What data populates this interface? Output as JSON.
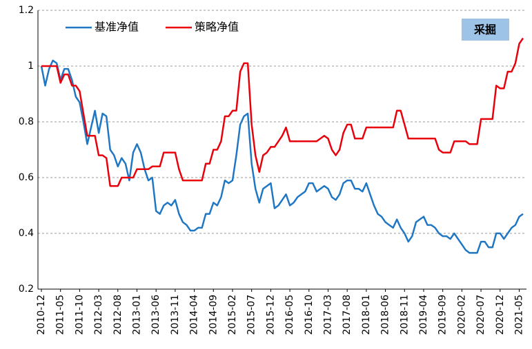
{
  "chart_data": {
    "type": "line",
    "annotation": "采掘",
    "categories": [
      "2010-12",
      null,
      null,
      null,
      null,
      "2011-05",
      null,
      null,
      null,
      null,
      "2011-10",
      null,
      null,
      null,
      null,
      "2012-03",
      null,
      null,
      null,
      null,
      "2012-08",
      null,
      null,
      null,
      null,
      "2013-01",
      null,
      null,
      null,
      null,
      "2013-06",
      null,
      null,
      null,
      null,
      "2013-11",
      null,
      null,
      null,
      null,
      "2014-04",
      null,
      null,
      null,
      null,
      "2014-09",
      null,
      null,
      null,
      null,
      "2015-02",
      null,
      null,
      null,
      null,
      "2015-07",
      null,
      null,
      null,
      null,
      "2015-12",
      null,
      null,
      null,
      null,
      "2016-05",
      null,
      null,
      null,
      null,
      "2016-10",
      null,
      null,
      null,
      null,
      "2017-03",
      null,
      null,
      null,
      null,
      "2017-08",
      null,
      null,
      null,
      null,
      "2018-01",
      null,
      null,
      null,
      null,
      "2018-06",
      null,
      null,
      null,
      null,
      "2018-11",
      null,
      null,
      null,
      null,
      "2019-04",
      null,
      null,
      null,
      null,
      "2019-09",
      null,
      null,
      null,
      null,
      "2020-02",
      null,
      null,
      null,
      null,
      "2020-07",
      null,
      null,
      null,
      null,
      "2020-12",
      null,
      null,
      null,
      null,
      "2021-05",
      null
    ],
    "series": [
      {
        "name": "基准净值",
        "color": "#1f77c4",
        "values": [
          1.0,
          0.93,
          0.99,
          1.02,
          1.01,
          0.95,
          0.99,
          0.99,
          0.95,
          0.89,
          0.87,
          0.8,
          0.72,
          0.78,
          0.84,
          0.76,
          0.83,
          0.82,
          0.7,
          0.68,
          0.64,
          0.67,
          0.65,
          0.59,
          0.69,
          0.72,
          0.69,
          0.63,
          0.59,
          0.6,
          0.48,
          0.47,
          0.5,
          0.51,
          0.5,
          0.52,
          0.47,
          0.44,
          0.43,
          0.41,
          0.41,
          0.42,
          0.42,
          0.47,
          0.47,
          0.51,
          0.5,
          0.53,
          0.59,
          0.58,
          0.59,
          0.68,
          0.79,
          0.82,
          0.83,
          0.65,
          0.56,
          0.51,
          0.56,
          0.57,
          0.58,
          0.49,
          0.5,
          0.52,
          0.54,
          0.5,
          0.51,
          0.53,
          0.54,
          0.55,
          0.58,
          0.58,
          0.55,
          0.56,
          0.57,
          0.56,
          0.53,
          0.52,
          0.54,
          0.58,
          0.59,
          0.59,
          0.56,
          0.56,
          0.55,
          0.58,
          0.54,
          0.5,
          0.47,
          0.46,
          0.44,
          0.43,
          0.42,
          0.45,
          0.42,
          0.4,
          0.37,
          0.39,
          0.44,
          0.45,
          0.46,
          0.43,
          0.43,
          0.42,
          0.4,
          0.39,
          0.39,
          0.38,
          0.4,
          0.38,
          0.36,
          0.34,
          0.33,
          0.33,
          0.33,
          0.37,
          0.37,
          0.35,
          0.35,
          0.4,
          0.4,
          0.38,
          0.4,
          0.42,
          0.43,
          0.46,
          0.47
        ]
      },
      {
        "name": "策略净值",
        "color": "#e8000b",
        "values": [
          1.0,
          1.0,
          1.0,
          1.0,
          1.0,
          0.94,
          0.97,
          0.97,
          0.93,
          0.93,
          0.91,
          0.83,
          0.75,
          0.75,
          0.75,
          0.68,
          0.68,
          0.67,
          0.57,
          0.57,
          0.57,
          0.6,
          0.6,
          0.6,
          0.6,
          0.63,
          0.63,
          0.63,
          0.63,
          0.64,
          0.64,
          0.64,
          0.69,
          0.69,
          0.69,
          0.69,
          0.63,
          0.59,
          0.59,
          0.59,
          0.59,
          0.59,
          0.59,
          0.65,
          0.65,
          0.7,
          0.7,
          0.73,
          0.82,
          0.82,
          0.84,
          0.84,
          0.98,
          1.01,
          1.01,
          0.79,
          0.68,
          0.62,
          0.68,
          0.69,
          0.71,
          0.71,
          0.73,
          0.75,
          0.78,
          0.73,
          0.73,
          0.73,
          0.73,
          0.73,
          0.73,
          0.73,
          0.73,
          0.74,
          0.75,
          0.74,
          0.7,
          0.68,
          0.7,
          0.76,
          0.79,
          0.79,
          0.74,
          0.74,
          0.74,
          0.78,
          0.78,
          0.78,
          0.78,
          0.78,
          0.78,
          0.78,
          0.78,
          0.84,
          0.84,
          0.79,
          0.74,
          0.74,
          0.74,
          0.74,
          0.74,
          0.74,
          0.74,
          0.74,
          0.7,
          0.69,
          0.69,
          0.69,
          0.73,
          0.73,
          0.73,
          0.73,
          0.72,
          0.72,
          0.72,
          0.81,
          0.81,
          0.81,
          0.81,
          0.93,
          0.92,
          0.92,
          0.98,
          0.98,
          1.01,
          1.08,
          1.1
        ]
      }
    ],
    "ylim": [
      0.2,
      1.2
    ],
    "yticks": [
      0.2,
      0.4,
      0.6,
      0.8,
      1,
      1.2
    ],
    "grid": true
  }
}
